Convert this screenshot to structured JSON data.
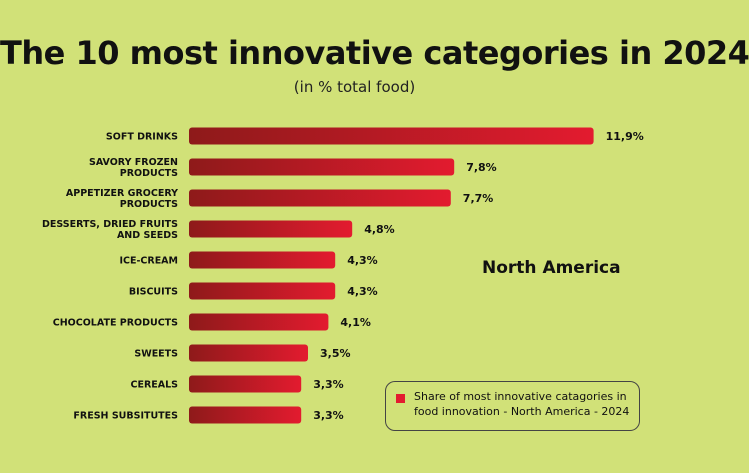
{
  "chart_data": {
    "type": "bar",
    "orientation": "horizontal",
    "title": "The 10 most innovative categories in 2024",
    "subtitle": "(in % total food)",
    "categories": [
      [
        "SOFT DRINKS"
      ],
      [
        "SAVORY FROZEN",
        "PRODUCTS"
      ],
      [
        "APPETIZER GROCERY",
        "PRODUCTS"
      ],
      [
        "DESSERTS, DRIED FRUITS",
        "AND SEEDS"
      ],
      [
        "ICE-CREAM"
      ],
      [
        "BISCUITS"
      ],
      [
        "CHOCOLATE PRODUCTS"
      ],
      [
        "SWEETS"
      ],
      [
        "CEREALS"
      ],
      [
        "FRESH SUBSITUTES"
      ]
    ],
    "values": [
      11.9,
      7.8,
      7.7,
      4.8,
      4.3,
      4.3,
      4.1,
      3.5,
      3.3,
      3.3
    ],
    "value_labels": [
      "11,9%",
      "7,8%",
      "7,7%",
      "4,8%",
      "4,3%",
      "4,3%",
      "4,1%",
      "3,5%",
      "3,3%",
      "3,3%"
    ],
    "region_label": "North America",
    "legend": "Share of most innovative catagories in food innovation - North America - 2024",
    "colors": {
      "bar": "#e31b2f",
      "bar_dark": "#8e1a1a",
      "background": "#d1e178"
    },
    "grid": false,
    "legend_position": "bottom-right"
  }
}
